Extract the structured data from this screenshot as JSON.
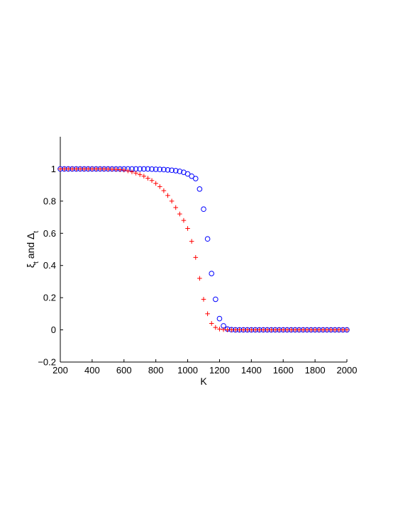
{
  "chart_data": {
    "type": "scatter",
    "xlabel": "K",
    "ylabel": "ξ_t and Δ_t",
    "xlim": [
      200,
      2000
    ],
    "ylim": [
      -0.2,
      1.2
    ],
    "xticks": [
      200,
      400,
      600,
      800,
      1000,
      1200,
      1400,
      1600,
      1800,
      2000
    ],
    "yticks": [
      -0.2,
      0,
      0.2,
      0.4,
      0.6,
      0.8,
      1
    ],
    "ytick_labels": [
      "−0.2",
      "0",
      "0.2",
      "0.4",
      "0.6",
      "0.8",
      "1"
    ],
    "grid": false,
    "series": [
      {
        "marker": "circle",
        "color": "#0000ff",
        "x": [
          200,
          225,
          250,
          275,
          300,
          325,
          350,
          375,
          400,
          425,
          450,
          475,
          500,
          525,
          550,
          575,
          600,
          625,
          650,
          675,
          700,
          725,
          750,
          775,
          800,
          825,
          850,
          875,
          900,
          925,
          950,
          975,
          1000,
          1025,
          1050,
          1075,
          1100,
          1125,
          1150,
          1175,
          1200,
          1225,
          1250,
          1275,
          1300,
          1325,
          1350,
          1375,
          1400,
          1425,
          1450,
          1475,
          1500,
          1525,
          1550,
          1575,
          1600,
          1625,
          1650,
          1675,
          1700,
          1725,
          1750,
          1775,
          1800,
          1825,
          1850,
          1875,
          1900,
          1925,
          1950,
          1975,
          2000
        ],
        "y": [
          1,
          1,
          1,
          1,
          1,
          1,
          1,
          1,
          1,
          1,
          1,
          1,
          1,
          1,
          1,
          1,
          1,
          1,
          1,
          1,
          1,
          1,
          1,
          0.999,
          0.998,
          0.997,
          0.996,
          0.994,
          0.992,
          0.989,
          0.985,
          0.979,
          0.969,
          0.955,
          0.94,
          0.875,
          0.75,
          0.565,
          0.35,
          0.19,
          0.07,
          0.025,
          0.005,
          0.001,
          0,
          0,
          0,
          0,
          0,
          0,
          0,
          0,
          0,
          0,
          0,
          0,
          0,
          0,
          0,
          0,
          0,
          0,
          0,
          0,
          0,
          0,
          0,
          0,
          0,
          0,
          0,
          0,
          0
        ]
      },
      {
        "marker": "plus",
        "color": "#ff0000",
        "x": [
          200,
          225,
          250,
          275,
          300,
          325,
          350,
          375,
          400,
          425,
          450,
          475,
          500,
          525,
          550,
          575,
          600,
          625,
          650,
          675,
          700,
          725,
          750,
          775,
          800,
          825,
          850,
          875,
          900,
          925,
          950,
          975,
          1000,
          1025,
          1050,
          1075,
          1100,
          1125,
          1150,
          1175,
          1200,
          1225,
          1250,
          1275,
          1300,
          1325,
          1350,
          1375,
          1400,
          1425,
          1450,
          1475,
          1500,
          1525,
          1550,
          1575,
          1600,
          1625,
          1650,
          1675,
          1700,
          1725,
          1750,
          1775,
          1800,
          1825,
          1850,
          1875,
          1900,
          1925,
          1950,
          1975,
          2000
        ],
        "y": [
          1,
          1,
          1,
          1,
          1,
          1,
          1,
          1,
          1,
          1,
          1,
          1,
          0.999,
          0.998,
          0.997,
          0.995,
          0.993,
          0.988,
          0.982,
          0.974,
          0.965,
          0.955,
          0.942,
          0.928,
          0.91,
          0.89,
          0.865,
          0.835,
          0.8,
          0.76,
          0.72,
          0.68,
          0.63,
          0.55,
          0.45,
          0.32,
          0.19,
          0.1,
          0.04,
          0.015,
          0.005,
          0.002,
          0,
          0,
          0,
          0,
          0,
          0,
          0,
          0,
          0,
          0,
          0,
          0,
          0,
          0,
          0,
          0,
          0,
          0,
          0,
          0,
          0,
          0,
          0,
          0,
          0,
          0,
          0,
          0,
          0,
          0,
          0
        ]
      }
    ]
  }
}
